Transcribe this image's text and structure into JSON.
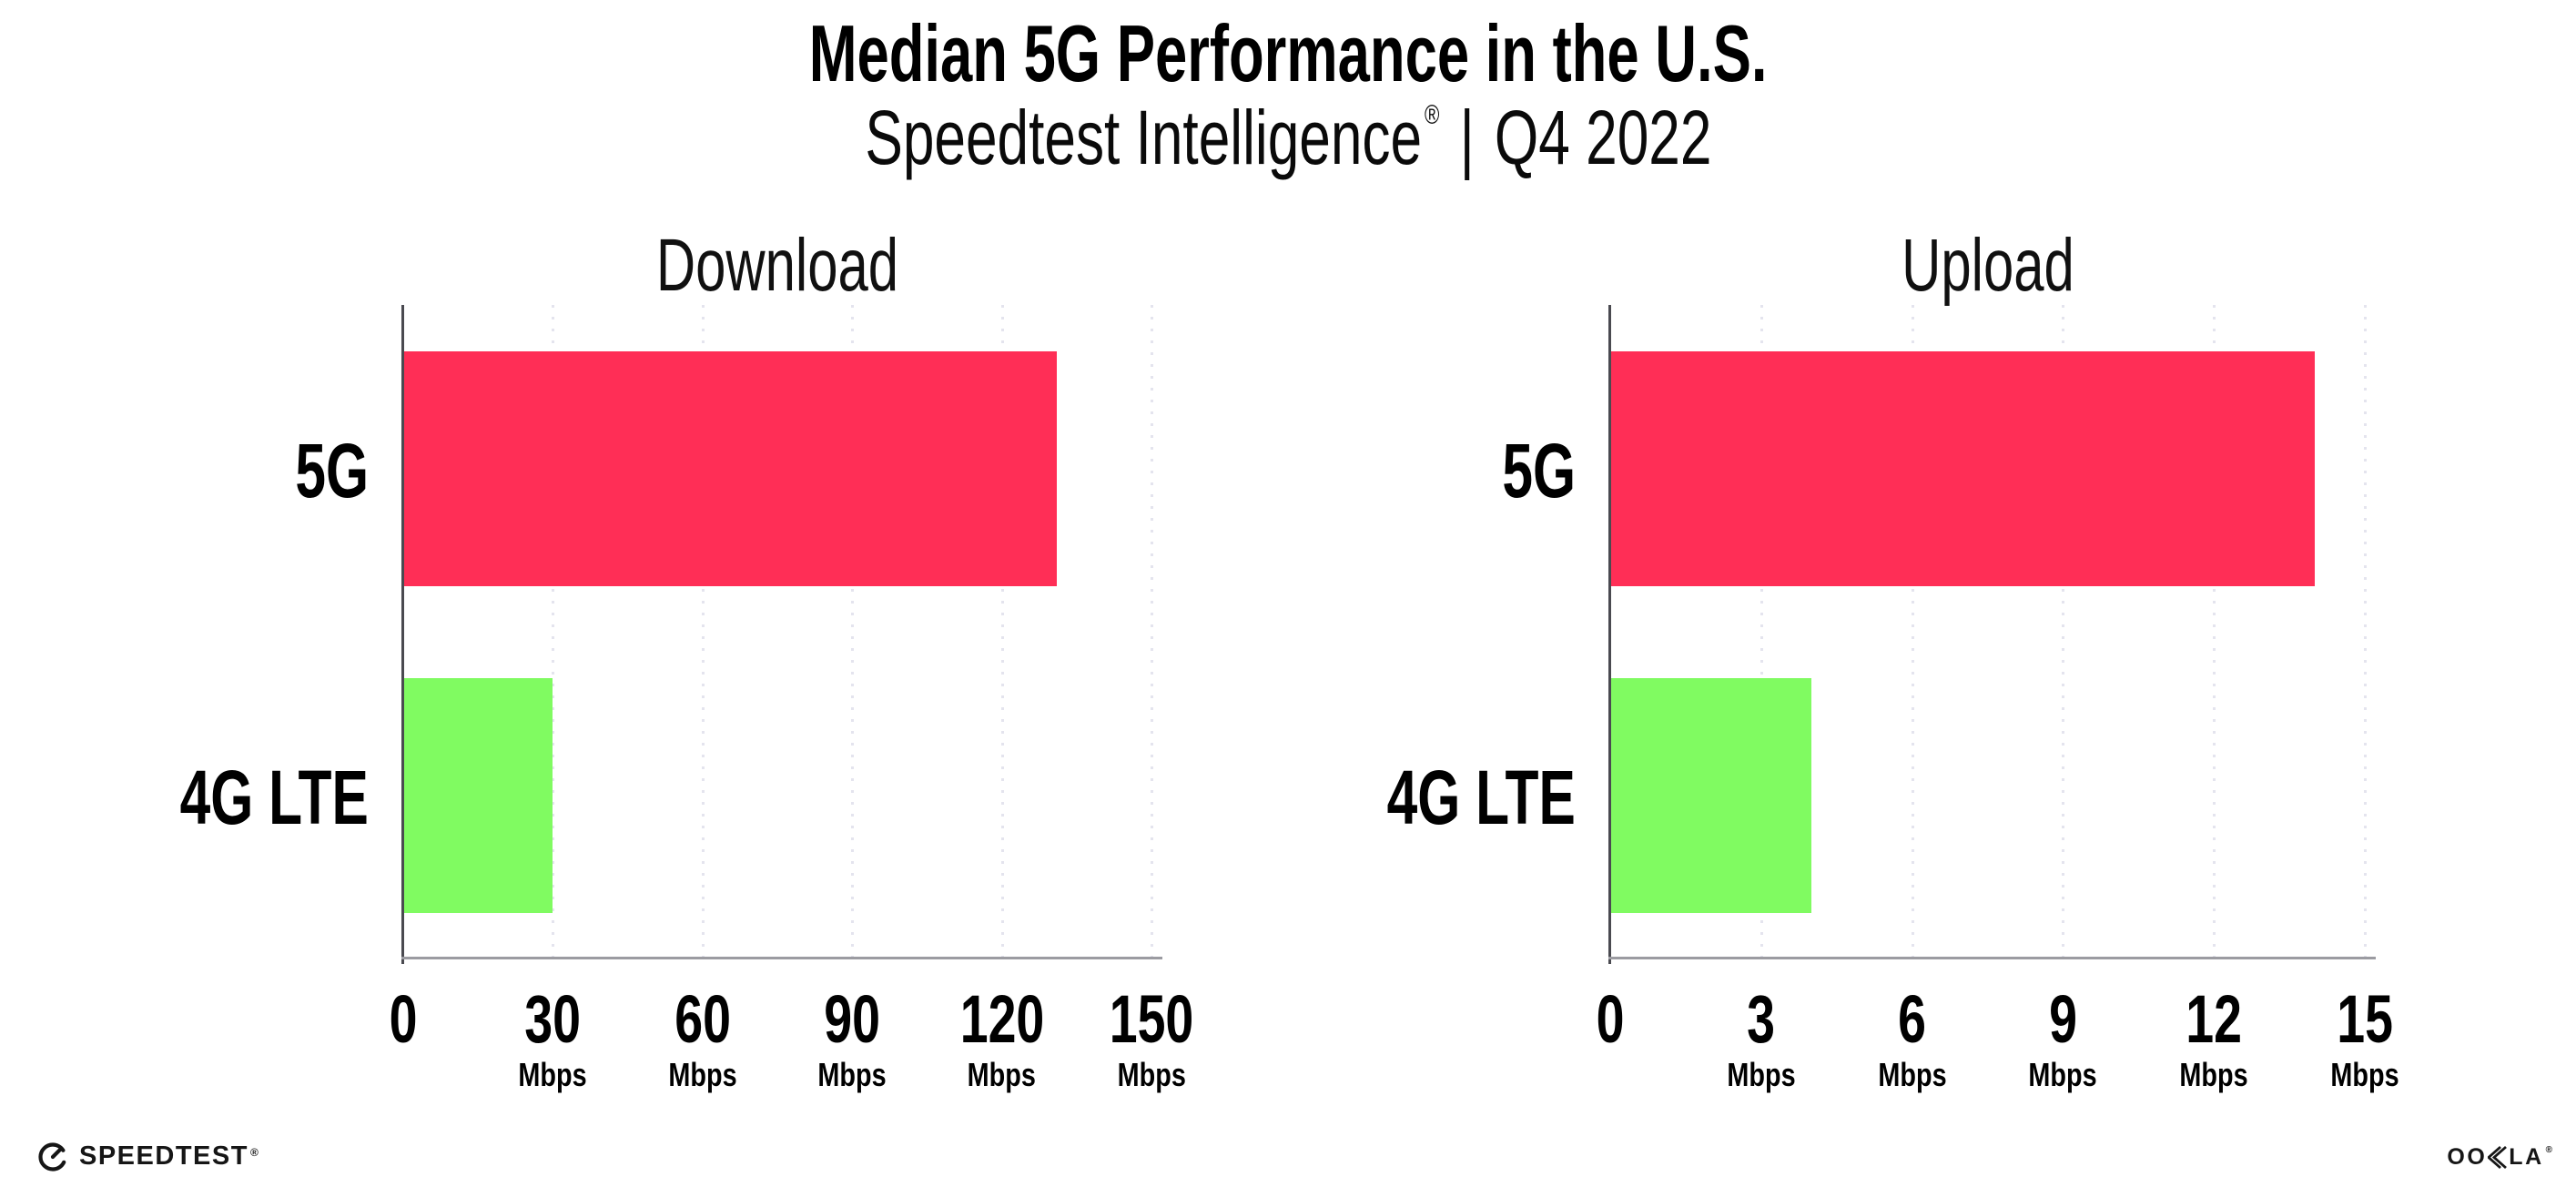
{
  "header": {
    "title": "Median 5G Performance in the U.S.",
    "subtitle_brand": "Speedtest Intelligence",
    "subtitle_reg": "®",
    "subtitle_separator": "|",
    "subtitle_period": "Q4 2022"
  },
  "chart_data": [
    {
      "type": "bar",
      "orientation": "horizontal",
      "title": "Download",
      "categories": [
        "5G",
        "4G LTE"
      ],
      "values": [
        131,
        30
      ],
      "unit": "Mbps",
      "xlim": [
        0,
        150
      ],
      "xticks": [
        0,
        30,
        60,
        90,
        120,
        150
      ],
      "bar_colors": [
        "#FF2E56",
        "#80FB61"
      ],
      "grid": "dotted-vertical",
      "legend": "none"
    },
    {
      "type": "bar",
      "orientation": "horizontal",
      "title": "Upload",
      "categories": [
        "5G",
        "4G LTE"
      ],
      "values": [
        14,
        4
      ],
      "unit": "Mbps",
      "xlim": [
        0,
        15
      ],
      "xticks": [
        0,
        3,
        6,
        9,
        12,
        15
      ],
      "bar_colors": [
        "#FF2E56",
        "#80FB61"
      ],
      "grid": "dotted-vertical",
      "legend": "none"
    }
  ],
  "footer": {
    "speedtest_wordmark": "SPEEDTEST",
    "speedtest_reg": "®",
    "ookla_wordmark": "OOKLA",
    "ookla_reg": "®"
  },
  "colors": {
    "bar_5g": "#FF2E56",
    "bar_4g_lte": "#80FB61",
    "gridline": "#E4E4EE",
    "y_axis": "#4A4A50",
    "x_axis": "#9B9BA1",
    "text": "#000000"
  }
}
